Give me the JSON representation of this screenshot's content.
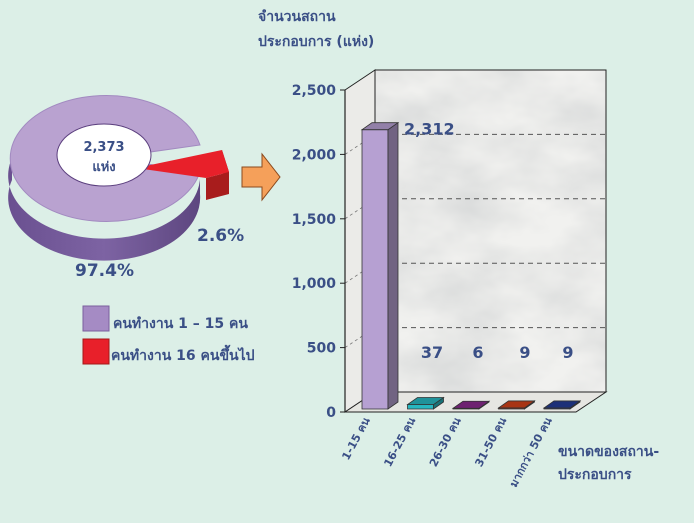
{
  "chart_data": [
    {
      "type": "pie",
      "center_label": "2,373",
      "center_unit": "แห่ง",
      "slices": [
        {
          "label": "คนทำงาน 1 – 15 คน",
          "value": 97.4,
          "value_label": "97.4%",
          "color": "#b9a2d0"
        },
        {
          "label": "คนทำงาน 16 คนขึ้นไป",
          "value": 2.6,
          "value_label": "2.6%",
          "color": "#e8202a"
        }
      ],
      "legend": [
        {
          "label": "คนทำงาน 1 – 15 คน",
          "color": "#a58bc4"
        },
        {
          "label": "คนทำงาน 16 คนขึ้นไป",
          "color": "#e8202a"
        }
      ]
    },
    {
      "type": "bar",
      "ylabel_line1": "จำนวนสถาน",
      "ylabel_line2": "ประกอบการ (แห่ง)",
      "xlabel_line1": "ขนาดของสถาน-",
      "xlabel_line2": "ประกอบการ",
      "ylim": [
        0,
        2500
      ],
      "yticks": [
        0,
        500,
        1000,
        1500,
        2000,
        2500
      ],
      "ytick_labels": [
        "0",
        "500",
        "1,000",
        "1,500",
        "2,000",
        "2,500"
      ],
      "categories": [
        "1-15 คน",
        "16-25 คน",
        "26-30 คน",
        "31-50 คน",
        "มากกว่า 50 คน"
      ],
      "values": [
        2312,
        37,
        6,
        9,
        9
      ],
      "value_labels": [
        "2,312",
        "37",
        "6",
        "9",
        "9"
      ],
      "colors": [
        "#b6a0d2",
        "#28b7c0",
        "#8a2b8d",
        "#d2421a",
        "#243c96"
      ]
    }
  ]
}
